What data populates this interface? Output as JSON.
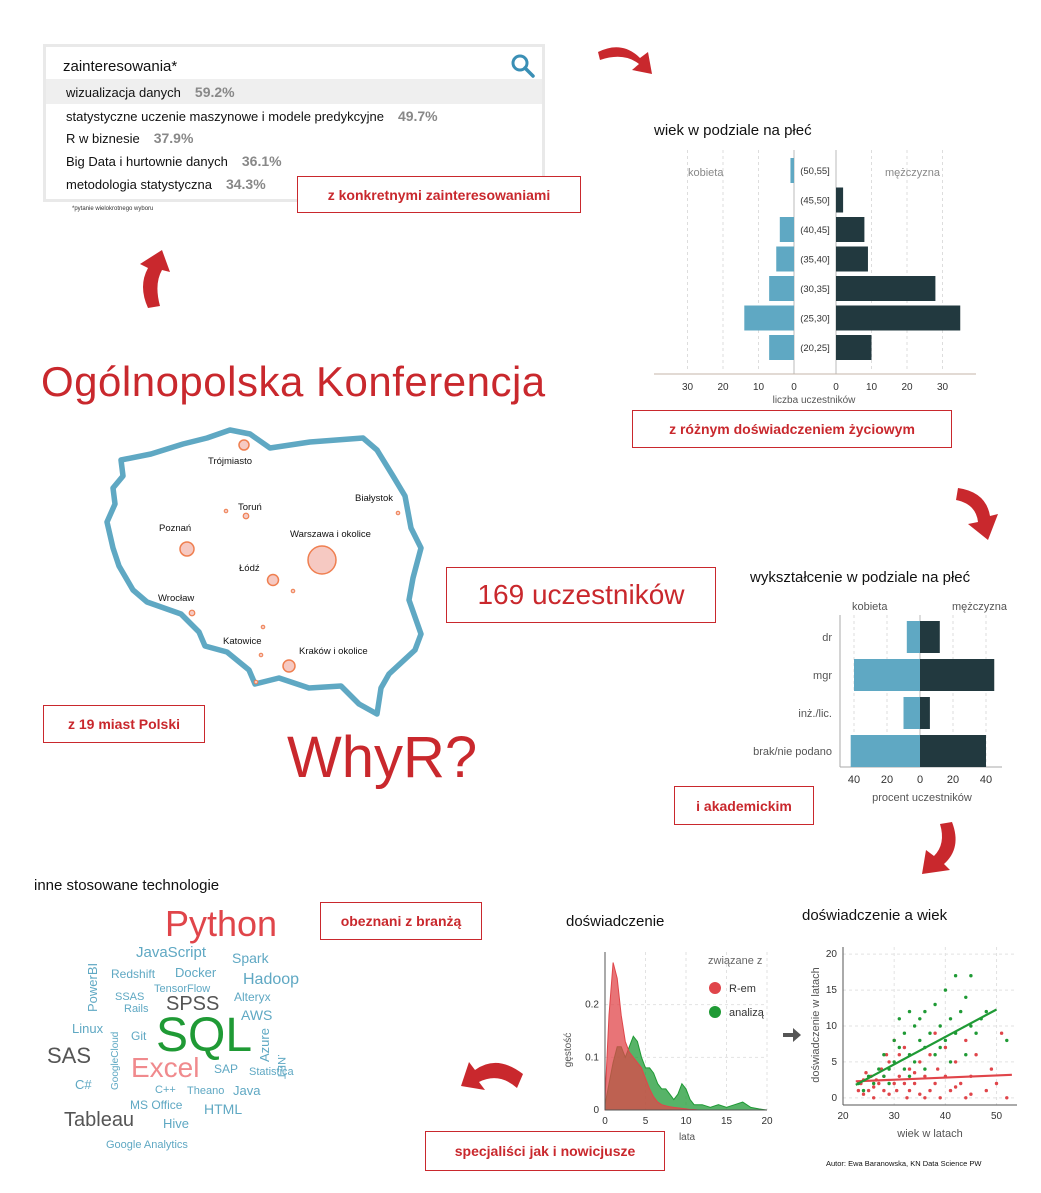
{
  "search": {
    "query": "zainteresowania*",
    "items": [
      {
        "label": "wizualizacja danych",
        "pct": "59.2%"
      },
      {
        "label": "statystyczne uczenie maszynowe  i modele predykcyjne",
        "pct": "49.7%"
      },
      {
        "label": "R w biznesie",
        "pct": "37.9%"
      },
      {
        "label": "Big Data i hurtownie danych",
        "pct": "36.1%"
      },
      {
        "label": "metodologia statystyczna",
        "pct": "34.3%"
      }
    ],
    "footnote": "*pytanie  wielokrotnego  wyboru"
  },
  "callouts": {
    "interests": "z konkretnymi zainteresowaniami",
    "life": "z różnym doświadczeniem życiowym",
    "participants": "169 uczestników",
    "cities": "z 19 miast Polski",
    "academic": "i akademickim",
    "industry": "obeznani z branżą",
    "specialists": "specjaliści jak i nowicjusze"
  },
  "main_title": "Ogólnopolska Konferencja",
  "whyr": "WhyR?",
  "map": {
    "cities": [
      {
        "name": "Trójmiasto"
      },
      {
        "name": "Toruń"
      },
      {
        "name": "Białystok"
      },
      {
        "name": "Poznań"
      },
      {
        "name": "Warszawa i okolice"
      },
      {
        "name": "Łódź"
      },
      {
        "name": "Wrocław"
      },
      {
        "name": "Katowice"
      },
      {
        "name": "Kraków i okolice"
      }
    ]
  },
  "tech": {
    "title": "inne stosowane technologie",
    "words": [
      "Python",
      "JavaScript",
      "Spark",
      "Redshift",
      "Docker",
      "Hadoop",
      "PowerBI",
      "TensorFlow",
      "SSAS",
      "SPSS",
      "Alteryx",
      "Rails",
      "AWS",
      "Linux",
      "Git",
      "SQL",
      "Azure",
      ".NET",
      "GoogleCloud",
      "SAS",
      "Statistica",
      "Excel",
      "SAP",
      "C#",
      "C++",
      "Theano",
      "Java",
      "MS Office",
      "HTML",
      "Tableau",
      "Hive",
      "Google Analytics"
    ]
  },
  "author": "Autor: Ewa Baranowska, KN Data Science PW",
  "chart_data": [
    {
      "type": "bar",
      "title": "wiek w podziale na płeć",
      "xlabel": "liczba uczestników",
      "categories": [
        "(50,55]",
        "(45,50]",
        "(40,45]",
        "(35,40]",
        "(30,35]",
        "(25,30]",
        "(20,25]"
      ],
      "series": [
        {
          "name": "kobieta",
          "values": [
            1,
            0,
            4,
            5,
            7,
            14,
            7
          ],
          "color": "#5fa8c3"
        },
        {
          "name": "mężczyzna",
          "values": [
            0,
            2,
            8,
            9,
            28,
            35,
            10
          ],
          "color": "#22393f"
        }
      ],
      "ticks_left": [
        "30",
        "20",
        "10",
        "0"
      ],
      "ticks_right": [
        "0",
        "10",
        "20",
        "30"
      ],
      "xlim": [
        0,
        40
      ]
    },
    {
      "type": "bar",
      "title": "wykształcenie w podziale na płeć",
      "xlabel": "procent uczestników",
      "categories": [
        "dr",
        "mgr",
        "inż./lic.",
        "brak/nie podano"
      ],
      "series": [
        {
          "name": "kobieta",
          "values": [
            8,
            40,
            10,
            42
          ],
          "color": "#5fa8c3"
        },
        {
          "name": "mężczyzna",
          "values": [
            12,
            45,
            6,
            40
          ],
          "color": "#22393f"
        }
      ],
      "ticks_left": [
        "40",
        "20",
        "0"
      ],
      "ticks_right": [
        "20",
        "40"
      ],
      "xlim": [
        0,
        50
      ]
    },
    {
      "type": "area",
      "title": "doświadczenie",
      "xlabel": "lata",
      "ylabel": "gęstość",
      "legend_title": "związane z",
      "legend_position": "right",
      "x": [
        0,
        0.5,
        1,
        1.5,
        2,
        2.5,
        3,
        3.5,
        4,
        4.5,
        5,
        5.5,
        6,
        6.5,
        7,
        7.5,
        8,
        8.5,
        9,
        9.5,
        10,
        10.5,
        11,
        11.5,
        12,
        13,
        14,
        15,
        16,
        17,
        18,
        19,
        20
      ],
      "series": [
        {
          "name": "R-em",
          "color": "#e0454a",
          "values": [
            0.02,
            0.18,
            0.28,
            0.25,
            0.18,
            0.13,
            0.11,
            0.1,
            0.09,
            0.08,
            0.06,
            0.04,
            0.025,
            0.015,
            0.01,
            0.008,
            0.006,
            0.005,
            0.004,
            0.003,
            0.002,
            0.001,
            0.001,
            0,
            0,
            0,
            0,
            0,
            0,
            0,
            0,
            0,
            0
          ]
        },
        {
          "name": "analizą",
          "color": "#1f9a35",
          "values": [
            0.01,
            0.05,
            0.09,
            0.12,
            0.12,
            0.1,
            0.12,
            0.14,
            0.13,
            0.1,
            0.08,
            0.08,
            0.07,
            0.05,
            0.04,
            0.04,
            0.03,
            0.02,
            0.03,
            0.05,
            0.04,
            0.02,
            0.01,
            0.01,
            0.01,
            0.005,
            0.01,
            0.005,
            0.01,
            0.015,
            0.005,
            0.002,
            0
          ]
        }
      ],
      "xlim": [
        0,
        20
      ],
      "ylim": [
        0,
        0.3
      ],
      "xticks": [
        0,
        5,
        10,
        15,
        20
      ],
      "yticks": [
        0,
        0.1,
        0.2
      ]
    },
    {
      "type": "scatter",
      "title": "doświadczenie a wiek",
      "xlabel": "wiek w latach",
      "ylabel": "doświadczenie w latach",
      "xlim": [
        20,
        54
      ],
      "ylim": [
        -1,
        21
      ],
      "xticks": [
        20,
        30,
        40,
        50
      ],
      "yticks": [
        0,
        5,
        10,
        15,
        20
      ],
      "series": [
        {
          "name": "R-em",
          "color": "#e0454a",
          "points": [
            [
              23,
              1
            ],
            [
              23.5,
              2
            ],
            [
              24,
              0.5
            ],
            [
              24,
              2.5
            ],
            [
              25,
              1
            ],
            [
              25.5,
              3
            ],
            [
              26,
              1.5
            ],
            [
              26,
              0
            ],
            [
              27,
              2
            ],
            [
              27.5,
              4
            ],
            [
              28,
              1
            ],
            [
              28,
              3
            ],
            [
              29,
              0.5
            ],
            [
              29,
              5
            ],
            [
              30,
              2
            ],
            [
              30.5,
              1
            ],
            [
              31,
              3
            ],
            [
              31,
              6
            ],
            [
              32,
              2
            ],
            [
              32.5,
              0
            ],
            [
              33,
              4
            ],
            [
              33,
              1
            ],
            [
              34,
              2
            ],
            [
              35,
              5
            ],
            [
              35,
              0.5
            ],
            [
              36,
              3
            ],
            [
              37,
              1
            ],
            [
              37,
              6
            ],
            [
              38,
              2
            ],
            [
              38.5,
              4
            ],
            [
              39,
              0
            ],
            [
              40,
              3
            ],
            [
              40,
              7
            ],
            [
              41,
              1
            ],
            [
              42,
              5
            ],
            [
              43,
              2
            ],
            [
              44,
              8
            ],
            [
              44,
              0
            ],
            [
              45,
              3
            ],
            [
              46,
              6
            ],
            [
              48,
              1
            ],
            [
              49,
              4
            ],
            [
              50,
              2
            ],
            [
              51,
              9
            ],
            [
              52,
              0
            ],
            [
              24.5,
              3.5
            ],
            [
              26.5,
              2.5
            ],
            [
              28.5,
              6
            ],
            [
              30,
              8
            ],
            [
              32,
              7
            ],
            [
              34,
              3.5
            ],
            [
              36,
              0
            ],
            [
              38,
              9
            ],
            [
              42,
              1.5
            ],
            [
              45,
              0.5
            ]
          ]
        },
        {
          "name": "analizą",
          "color": "#1f9a35",
          "points": [
            [
              23,
              2
            ],
            [
              24,
              1
            ],
            [
              25,
              3
            ],
            [
              26,
              2
            ],
            [
              27,
              4
            ],
            [
              28,
              3
            ],
            [
              28,
              6
            ],
            [
              29,
              2
            ],
            [
              30,
              5
            ],
            [
              30,
              8
            ],
            [
              31,
              7
            ],
            [
              31,
              11
            ],
            [
              32,
              4
            ],
            [
              32,
              9
            ],
            [
              33,
              6
            ],
            [
              33,
              12
            ],
            [
              34,
              5
            ],
            [
              34,
              10
            ],
            [
              35,
              8
            ],
            [
              35,
              11
            ],
            [
              36,
              7
            ],
            [
              36,
              12
            ],
            [
              37,
              9
            ],
            [
              38,
              13
            ],
            [
              38,
              6
            ],
            [
              39,
              10
            ],
            [
              40,
              8
            ],
            [
              40,
              15
            ],
            [
              41,
              11
            ],
            [
              42,
              9
            ],
            [
              42,
              17
            ],
            [
              43,
              12
            ],
            [
              44,
              6
            ],
            [
              44,
              14
            ],
            [
              45,
              10
            ],
            [
              45,
              17
            ],
            [
              46,
              9
            ],
            [
              47,
              11
            ],
            [
              48,
              12
            ],
            [
              52,
              8
            ],
            [
              29,
              4
            ],
            [
              33,
              3
            ],
            [
              36,
              4
            ],
            [
              39,
              7
            ],
            [
              41,
              5
            ]
          ]
        }
      ],
      "trend": [
        {
          "name": "R-em",
          "x": [
            22.5,
            53
          ],
          "y": [
            2.3,
            3.2
          ]
        },
        {
          "name": "analizą",
          "x": [
            22.5,
            50
          ],
          "y": [
            1.8,
            12.3
          ]
        }
      ]
    }
  ]
}
